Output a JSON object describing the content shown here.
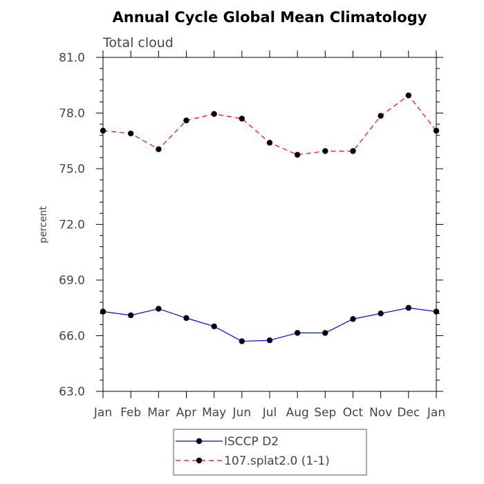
{
  "chart_data": {
    "type": "line",
    "title": "Annual Cycle Global Mean Climatology",
    "subtitle": "Total cloud",
    "xlabel": "",
    "ylabel": "percent",
    "categories": [
      "Jan",
      "Feb",
      "Mar",
      "Apr",
      "May",
      "Jun",
      "Jul",
      "Aug",
      "Sep",
      "Oct",
      "Nov",
      "Dec",
      "Jan"
    ],
    "ylim": [
      63.0,
      81.0
    ],
    "yticks": [
      "63.0",
      "66.0",
      "69.0",
      "72.0",
      "75.0",
      "78.0",
      "81.0"
    ],
    "series": [
      {
        "name": "ISCCP D2",
        "color": "#0000ff",
        "dash": "solid",
        "values": [
          67.3,
          67.1,
          67.45,
          66.95,
          66.5,
          65.7,
          65.75,
          66.15,
          66.15,
          66.9,
          67.2,
          67.5,
          67.3
        ]
      },
      {
        "name": "107.splat2.0 (1-1)",
        "color": "#ff0000",
        "dash": "dashed",
        "values": [
          77.05,
          76.9,
          76.05,
          77.6,
          77.95,
          77.7,
          76.4,
          75.75,
          75.95,
          75.95,
          77.85,
          78.95,
          77.05
        ]
      }
    ],
    "marker": "filled-circle",
    "grid": false,
    "legend_position": "bottom-center"
  }
}
